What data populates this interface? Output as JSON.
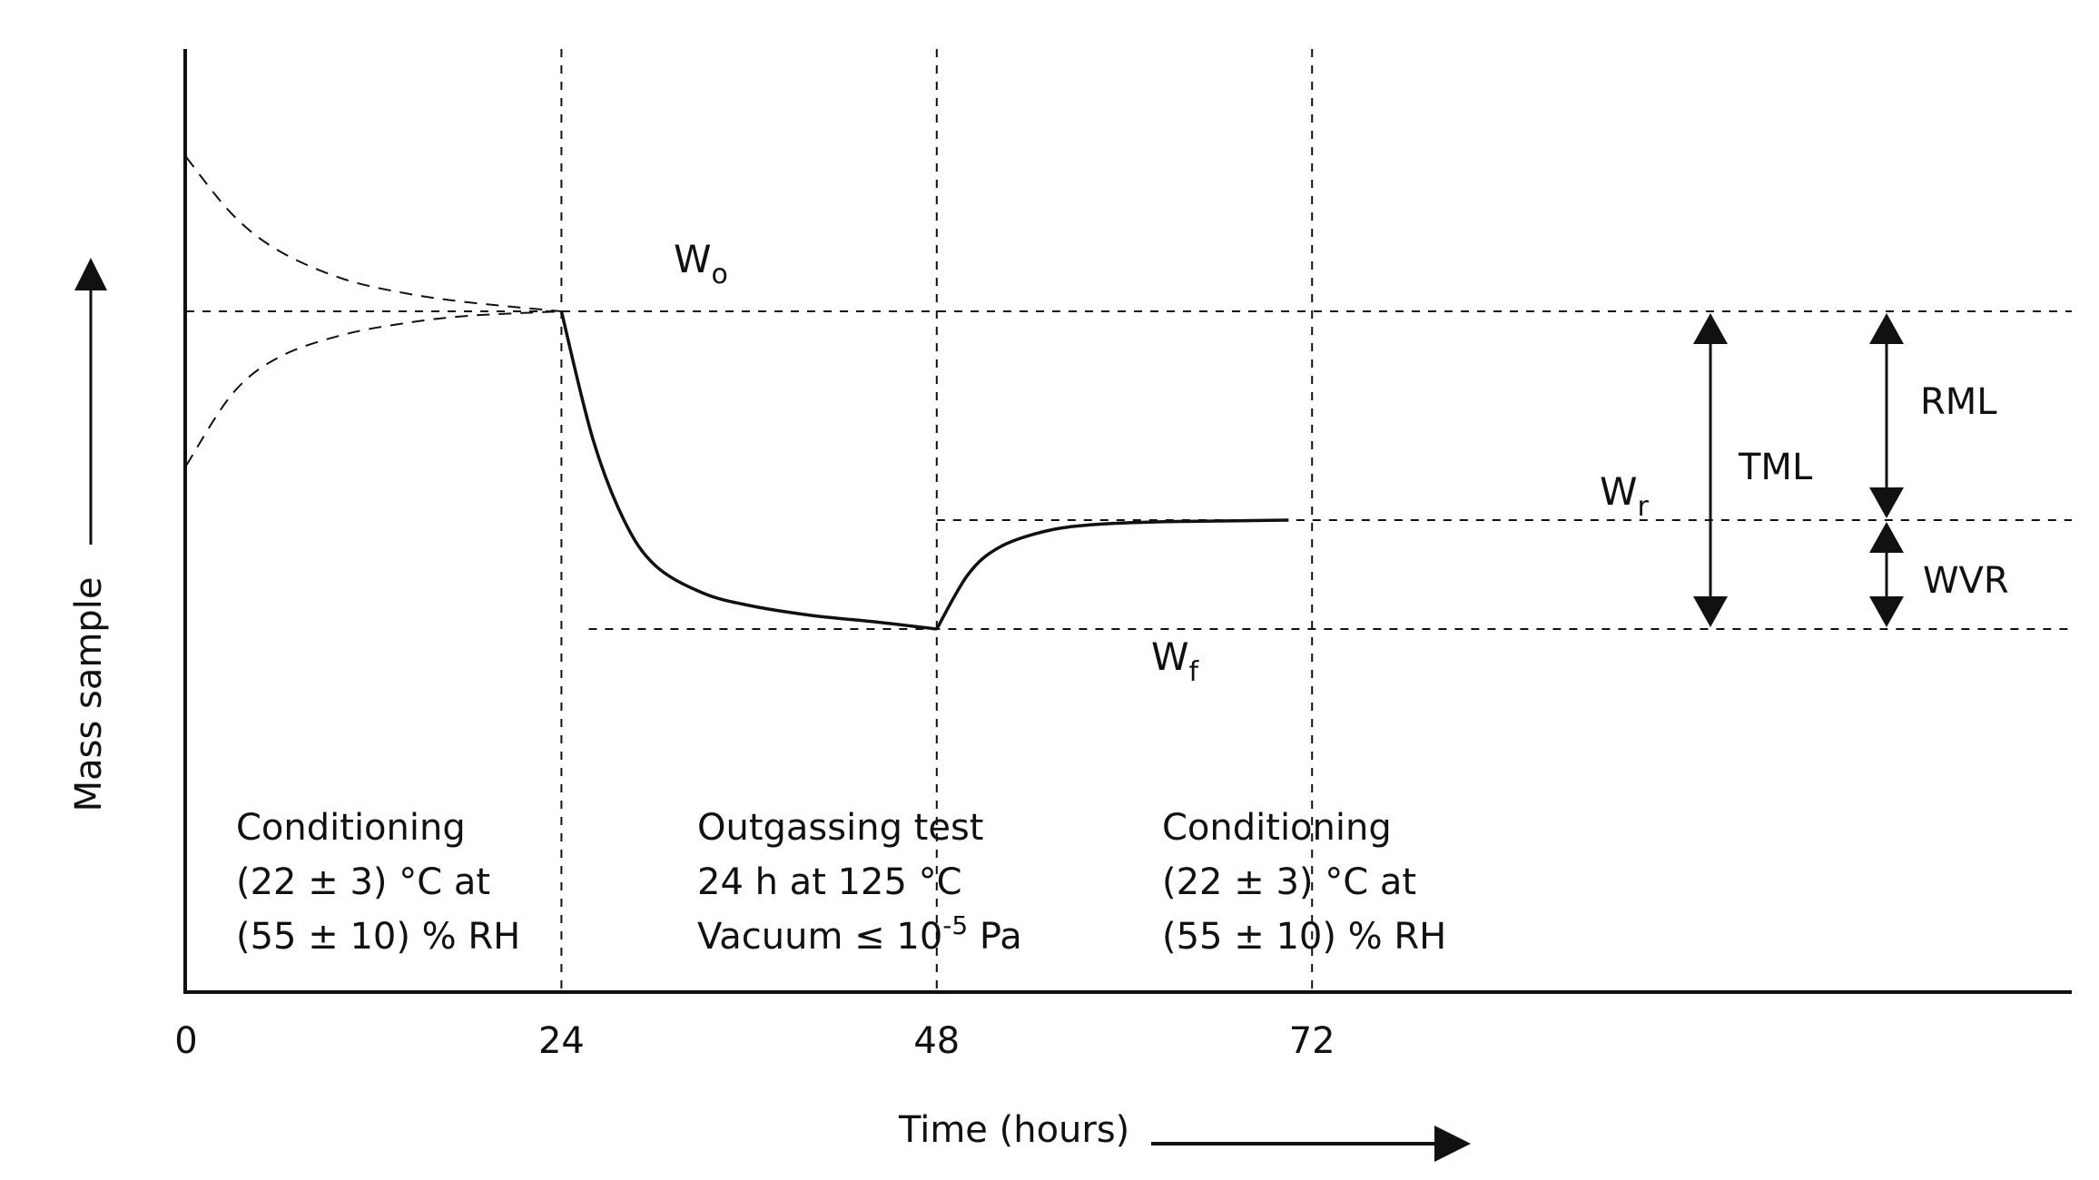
{
  "chart_data": {
    "type": "line",
    "title": "",
    "xlabel": "Time (hours)",
    "ylabel": "Mass sample",
    "xlim": [
      0,
      120
    ],
    "ylim": [
      0,
      100
    ],
    "x_ticks": [
      "0",
      "24",
      "48",
      "72"
    ],
    "grid": false,
    "reference_levels": {
      "Wo": 75,
      "Wr": 52,
      "Wf": 40
    },
    "series": [
      {
        "name": "Conditioning mass (sample initially heavy)",
        "style": "dashed",
        "x": [
          0,
          3,
          6,
          10,
          14,
          18,
          24
        ],
        "y": [
          92,
          85.6,
          81.6,
          78.6,
          77,
          76,
          75
        ]
      },
      {
        "name": "Conditioning mass (sample initially light)",
        "style": "dashed",
        "x": [
          0,
          3,
          6,
          10,
          14,
          18,
          24
        ],
        "y": [
          58,
          66,
          70,
          72.4,
          73.7,
          74.5,
          75
        ]
      },
      {
        "name": "Mass during outgassing test",
        "style": "solid",
        "x": [
          24,
          26,
          28,
          30,
          33,
          36,
          40,
          44,
          48
        ],
        "y": [
          75,
          61,
          52,
          47,
          44,
          42.6,
          41.5,
          40.8,
          40
        ]
      },
      {
        "name": "Mass during reconditioning",
        "style": "solid",
        "x": [
          48,
          50,
          52,
          55,
          58,
          62,
          66,
          70.5
        ],
        "y": [
          40,
          46,
          49,
          50.8,
          51.5,
          51.8,
          51.9,
          52
        ]
      }
    ],
    "phase_dividers": [
      24,
      48,
      72
    ],
    "phases": [
      {
        "lines": [
          "Conditioning",
          "(22 ± 3) °C at",
          "(55 ± 10) % RH"
        ]
      },
      {
        "lines": [
          "Outgassing test",
          "24 h at 125 °C",
          "Vacuum ≤ 10",
          "-5",
          " Pa"
        ]
      },
      {
        "lines": [
          "Conditioning",
          "(22 ± 3) °C at",
          "(55 ± 10) % RH"
        ]
      }
    ],
    "point_labels": [
      {
        "main": "W",
        "sub": "o"
      },
      {
        "main": "W",
        "sub": "f"
      },
      {
        "main": "W",
        "sub": "r"
      }
    ],
    "dimensions": [
      {
        "label": "TML",
        "from": "Wo",
        "to": "Wf"
      },
      {
        "label": "RML",
        "from": "Wo",
        "to": "Wr"
      },
      {
        "label": "WVR",
        "from": "Wr",
        "to": "Wf"
      }
    ]
  }
}
